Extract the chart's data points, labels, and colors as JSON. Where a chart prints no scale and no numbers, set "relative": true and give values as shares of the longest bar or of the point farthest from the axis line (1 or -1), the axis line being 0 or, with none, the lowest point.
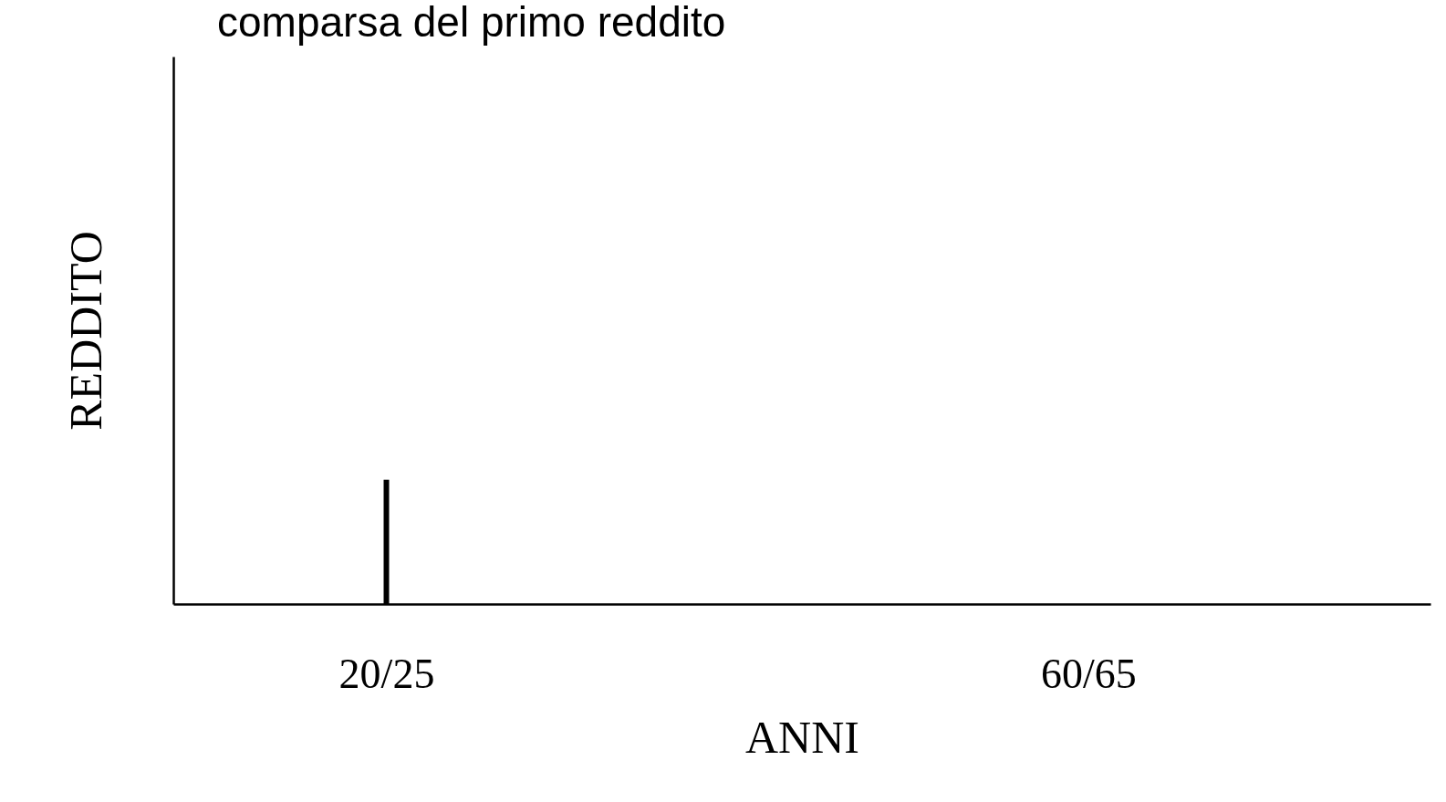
{
  "chart_data": {
    "type": "bar",
    "title": "comparsa del primo reddito",
    "xlabel": "ANNI",
    "ylabel": "REDDITO",
    "relative": true,
    "categories": [
      "20/25",
      "60/65"
    ],
    "values": [
      1,
      null
    ],
    "color": "#000000",
    "grid": false
  }
}
